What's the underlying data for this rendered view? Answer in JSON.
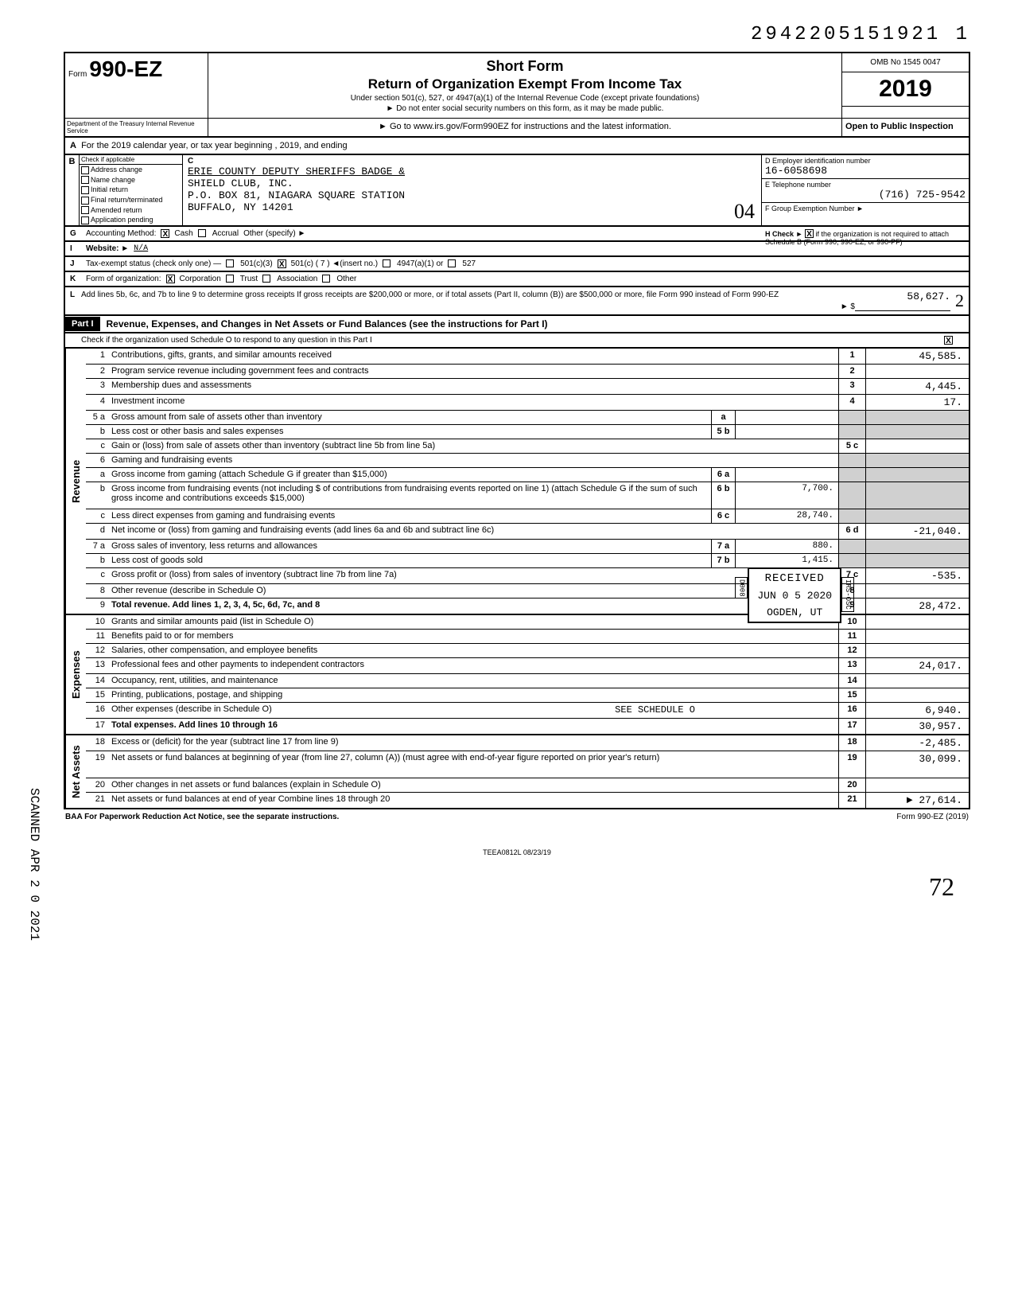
{
  "top_number": "2942205151921  1",
  "form": {
    "prefix": "Form",
    "name": "990-EZ",
    "short": "Short Form",
    "title": "Return of Organization Exempt From Income Tax",
    "sub1": "Under section 501(c), 527, or 4947(a)(1) of the Internal Revenue Code (except private foundations)",
    "sub2": "Do not enter social security numbers on this form, as it may be made public.",
    "sub3": "Go to www.irs.gov/Form990EZ for instructions and the latest information.",
    "omb": "OMB No 1545 0047",
    "year": "2019",
    "open": "Open to Public Inspection",
    "dept": "Department of the Treasury\nInternal Revenue Service"
  },
  "line_a": "For the 2019 calendar year, or tax year beginning                                          , 2019, and ending",
  "block_b": {
    "b": "B",
    "check_label": "Check if applicable",
    "checks": [
      "Address change",
      "Name change",
      "Initial return",
      "Final return/terminated",
      "Amended return",
      "Application pending"
    ],
    "c": "C",
    "org_name1": "ERIE COUNTY DEPUTY SHERIFFS BADGE &",
    "org_name2": "SHIELD CLUB, INC.",
    "addr1": "P.O. BOX 81, NIAGARA SQUARE STATION",
    "addr2": "BUFFALO, NY 14201",
    "d_label": "D  Employer identification number",
    "ein": "16-6058698",
    "e_label": "E  Telephone number",
    "phone": "(716) 725-9542",
    "f_label": "F  Group Exemption Number ►",
    "stamp04": "04"
  },
  "row_g": {
    "g": "G",
    "text": "Accounting Method:",
    "cash": "Cash",
    "accrual": "Accrual",
    "other": "Other (specify) ►",
    "h": "H  Check ►",
    "h2": "if the organization is not required to attach Schedule B (Form 990, 990-EZ, or 990-PF)"
  },
  "row_i": {
    "i": "I",
    "text": "Website: ►",
    "val": "N/A"
  },
  "row_j": {
    "j": "J",
    "text": "Tax-exempt status (check only one) —",
    "o1": "501(c)(3)",
    "o2": "501(c) (  7  ) ◄(insert no.)",
    "o3": "4947(a)(1) or",
    "o4": "527"
  },
  "row_k": {
    "k": "K",
    "text": "Form of organization:",
    "o1": "Corporation",
    "o2": "Trust",
    "o3": "Association",
    "o4": "Other"
  },
  "row_l": {
    "l": "L",
    "text": "Add lines 5b, 6c, and 7b to line 9 to determine gross receipts  If gross receipts are $200,000 or more, or if total assets (Part II, column (B)) are $500,000 or more, file Form 990 instead of Form 990-EZ",
    "arrow": "► $",
    "amount": "58,627."
  },
  "part1": {
    "label": "Part I",
    "title": "Revenue, Expenses, and Changes in Net Assets or Fund Balances (see the instructions for Part I)",
    "schedo": "Check if the organization used Schedule O to respond to any question in this Part I",
    "x": "X"
  },
  "sections": {
    "revenue": "Revenue",
    "expenses": "Expenses",
    "netassets": "Net Assets"
  },
  "rows": [
    {
      "n": "1",
      "d": "Contributions, gifts, grants, and similar amounts received",
      "idx": "1",
      "amt": "45,585."
    },
    {
      "n": "2",
      "d": "Program service revenue including government fees and contracts",
      "idx": "2",
      "amt": ""
    },
    {
      "n": "3",
      "d": "Membership dues and assessments",
      "idx": "3",
      "amt": "4,445."
    },
    {
      "n": "4",
      "d": "Investment income",
      "idx": "4",
      "amt": "17."
    },
    {
      "n": "5 a",
      "d": "Gross amount from sale of assets other than inventory",
      "mid_n": "a",
      "mid_v": "",
      "idx": "",
      "amt": "",
      "grey": true
    },
    {
      "n": "b",
      "d": "Less cost or other basis and sales expenses",
      "mid_n": "5 b",
      "mid_v": "",
      "idx": "",
      "amt": "",
      "grey": true
    },
    {
      "n": "c",
      "d": "Gain or (loss) from sale of assets other than inventory (subtract line 5b from line 5a)",
      "idx": "5 c",
      "amt": ""
    },
    {
      "n": "6",
      "d": "Gaming and fundraising events",
      "idx": "",
      "amt": "",
      "grey": true,
      "nomid": true
    },
    {
      "n": "a",
      "d": "Gross income from gaming (attach Schedule G if greater than $15,000)",
      "mid_n": "6 a",
      "mid_v": "",
      "idx": "",
      "amt": "",
      "grey": true
    },
    {
      "n": "b",
      "d": "Gross income from fundraising events (not including  $                                of contributions from fundraising events reported on line 1) (attach Schedule G if the sum of such gross income and contributions exceeds $15,000)",
      "mid_n": "6 b",
      "mid_v": "7,700.",
      "idx": "",
      "amt": "",
      "grey": true,
      "tall": true
    },
    {
      "n": "c",
      "d": "Less  direct expenses from gaming and fundraising events",
      "mid_n": "6 c",
      "mid_v": "28,740.",
      "idx": "",
      "amt": "",
      "grey": true
    },
    {
      "n": "d",
      "d": "Net income or (loss) from gaming and fundraising events (add lines 6a and 6b and subtract line 6c)",
      "idx": "6 d",
      "amt": "-21,040."
    },
    {
      "n": "7 a",
      "d": "Gross sales of inventory, less returns and allowances",
      "mid_n": "7 a",
      "mid_v": "880.",
      "idx": "",
      "amt": "",
      "grey": true
    },
    {
      "n": "b",
      "d": "Less  cost of goods sold",
      "mid_n": "7 b",
      "mid_v": "1,415.",
      "idx": "",
      "amt": "",
      "grey": true
    },
    {
      "n": "c",
      "d": "Gross profit or (loss) from sales of inventory (subtract line 7b from line 7a)",
      "idx": "7 c",
      "amt": "-535."
    },
    {
      "n": "8",
      "d": "Other revenue (describe in Schedule O)",
      "idx": "8",
      "amt": ""
    },
    {
      "n": "9",
      "d": "Total revenue. Add lines 1, 2, 3, 4, 5c, 6d, 7c, and 8",
      "idx": "9",
      "amt": "28,472.",
      "bold": true
    }
  ],
  "exp_rows": [
    {
      "n": "10",
      "d": "Grants and similar amounts paid (list in Schedule O)",
      "idx": "10",
      "amt": ""
    },
    {
      "n": "11",
      "d": "Benefits paid to or for members",
      "idx": "11",
      "amt": ""
    },
    {
      "n": "12",
      "d": "Salaries, other compensation, and employee benefits",
      "idx": "12",
      "amt": ""
    },
    {
      "n": "13",
      "d": "Professional fees and other payments to independent contractors",
      "idx": "13",
      "amt": "24,017."
    },
    {
      "n": "14",
      "d": "Occupancy, rent, utilities, and maintenance",
      "idx": "14",
      "amt": ""
    },
    {
      "n": "15",
      "d": "Printing, publications, postage, and shipping",
      "idx": "15",
      "amt": ""
    },
    {
      "n": "16",
      "d": "Other expenses (describe in Schedule O)",
      "idx": "16",
      "amt": "6,940."
    },
    {
      "n": "17",
      "d": "Total expenses. Add lines 10 through 16",
      "idx": "17",
      "amt": "30,957.",
      "bold": true
    }
  ],
  "na_rows": [
    {
      "n": "18",
      "d": "Excess or (deficit) for the year (subtract line 17 from line 9)",
      "idx": "18",
      "amt": "-2,485."
    },
    {
      "n": "19",
      "d": "Net assets or fund balances at beginning of year (from line 27, column (A)) (must agree with end-of-year figure reported on prior year's return)",
      "idx": "19",
      "amt": "30,099.",
      "tall": true
    },
    {
      "n": "20",
      "d": "Other changes in net assets or fund balances (explain in Schedule O)",
      "idx": "20",
      "amt": ""
    },
    {
      "n": "21",
      "d": "Net assets or fund balances at end of year  Combine lines 18 through 20",
      "idx": "21",
      "amt": "27,614.",
      "arrow": true
    }
  ],
  "stamp": {
    "received": "RECEIVED",
    "date": "JUN 0 5 2020",
    "city": "OGDEN, UT",
    "d008": "D008",
    "irs": "IRS-OSC"
  },
  "see_schedo": "SEE SCHEDULE O",
  "footer": {
    "baa": "BAA  For Paperwork Reduction Act Notice, see the separate instructions.",
    "form": "Form 990-EZ (2019)",
    "teea": "TEEA0812L   08/23/19"
  },
  "side_scan": "SCANNED APR 2 0 2021",
  "page_num": "72",
  "hand_2": "2"
}
